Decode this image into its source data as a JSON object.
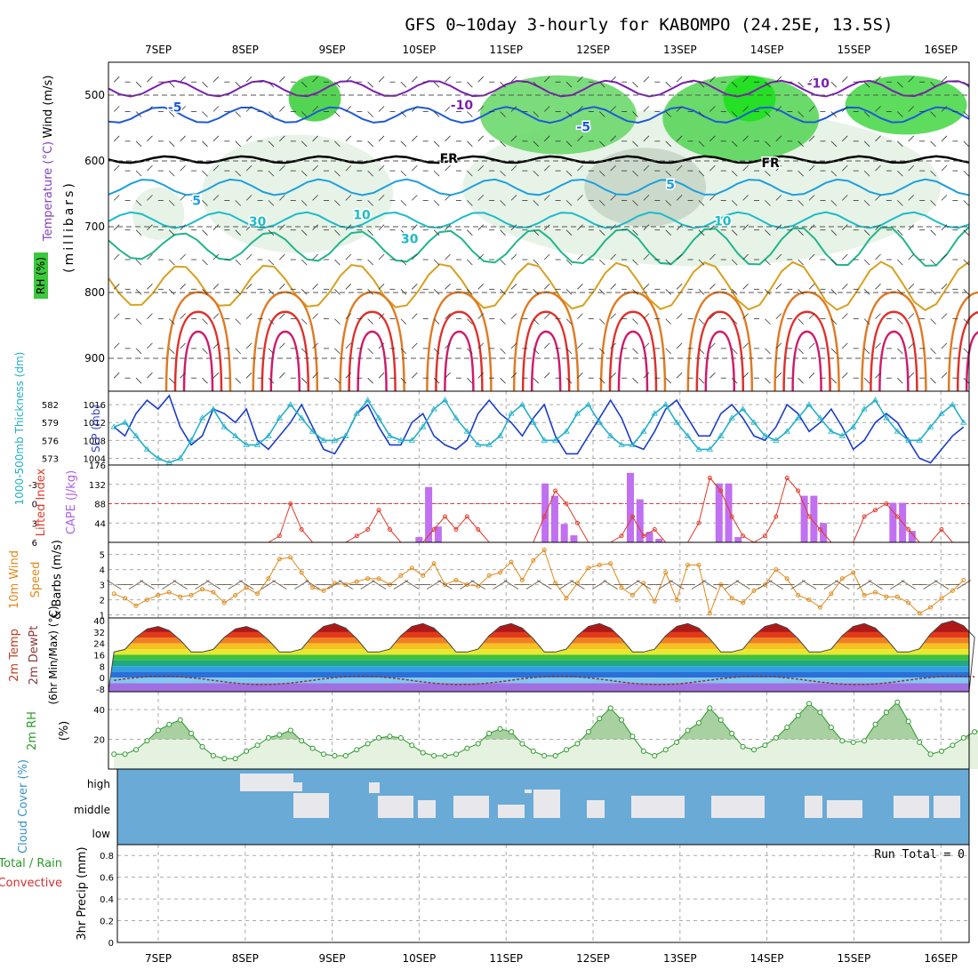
{
  "title": "GFS 0~10day 3-hourly for KABOMPO (24.25E, 13.5S)",
  "dates": [
    "7SEP",
    "8SEP",
    "9SEP",
    "10SEP",
    "11SEP",
    "12SEP",
    "13SEP",
    "14SEP",
    "15SEP",
    "16SEP"
  ],
  "run_total": "Run Total = 0",
  "colors": {
    "t_neg10": "#7a1fb0",
    "t_neg5": "#1f5ad8",
    "t_5": "#1e9fdc",
    "t_10": "#1cbcc8",
    "t_15": "#22b48c",
    "t_20": "#d7a01e",
    "t_25": "#e07a22",
    "t_30": "#e0302a",
    "t_35": "#d01a6a",
    "slp": "#1a3dc8",
    "thick": "#22b0c8",
    "li": "#e03a2a",
    "cape": "#c070f0",
    "wind": "#e08a1a",
    "rh": "#2a9a2a",
    "cloud_bg": "#6aaad6",
    "cloud": "#e8e8ec"
  },
  "chart_data": [
    {
      "type": "contour",
      "panel": "upper-air",
      "ylabel_main": "Wind (m/s)",
      "ylabel_temp": "Temperature (°C)",
      "ylabel_rh": "RH (%)",
      "ylabel_pressure": "(millibars)",
      "yticks": [
        "500",
        "600",
        "700",
        "800",
        "900"
      ],
      "ylim": [
        950,
        450
      ],
      "contour_labels": [
        {
          "text": "-5",
          "color": "t_neg5",
          "x": 0.6,
          "p": 518
        },
        {
          "text": "-10",
          "color": "t_neg10",
          "x": 3.9,
          "p": 515
        },
        {
          "text": "-5",
          "color": "t_neg5",
          "x": 5.3,
          "p": 548
        },
        {
          "text": "-10",
          "color": "t_neg10",
          "x": 8.0,
          "p": 482
        },
        {
          "text": "FR",
          "color": "black",
          "x": 3.75,
          "p": 596
        },
        {
          "text": "FR",
          "color": "black",
          "x": 7.45,
          "p": 603
        },
        {
          "text": "5",
          "color": "t_5",
          "x": 0.85,
          "p": 660
        },
        {
          "text": "5",
          "color": "t_5",
          "x": 6.3,
          "p": 636
        },
        {
          "text": "10",
          "color": "t_10",
          "x": 2.75,
          "p": 682
        },
        {
          "text": "10",
          "color": "t_10",
          "x": 6.9,
          "p": 691
        },
        {
          "text": "30",
          "color": "t_10",
          "x": 1.55,
          "p": 692
        },
        {
          "text": "30",
          "color": "t_10",
          "x": 3.3,
          "p": 718
        }
      ]
    },
    {
      "type": "line",
      "panel": "slp-thickness",
      "ylabel_left": "1000-500mb Thickness (dm)",
      "ylabel_right": "SLP (mb)",
      "left_ticks": [
        "582",
        "579",
        "576",
        "573"
      ],
      "right_ticks": [
        "1016",
        "1012",
        "1008",
        "1004"
      ],
      "ylim": [
        1002.5,
        1019
      ],
      "series": [
        {
          "key": "slp",
          "values": [
            1011,
            1009,
            1014,
            1017,
            1015,
            1018,
            1011,
            1007,
            1009,
            1015,
            1014,
            1012,
            1015,
            1008,
            1006,
            1009,
            1012,
            1016,
            1011,
            1006,
            1005,
            1009,
            1014,
            1016,
            1011,
            1007,
            1007,
            1012,
            1014,
            1009,
            1007,
            1006,
            1008,
            1014,
            1017,
            1014,
            1012,
            1009,
            1013,
            1016,
            1009,
            1005,
            1005,
            1009,
            1013,
            1017,
            1013,
            1007,
            1006,
            1010,
            1015,
            1017,
            1013,
            1009,
            1009,
            1014,
            1016,
            1013,
            1009,
            1008,
            1011,
            1016,
            1014,
            1010,
            1012,
            1015,
            1011,
            1006,
            1008,
            1012,
            1014,
            1012,
            1008,
            1004,
            1003,
            1006,
            1009,
            1011
          ]
        },
        {
          "key": "thick",
          "values": [
            1011,
            1012,
            1009,
            1006,
            1004,
            1003,
            1004,
            1008,
            1013,
            1015,
            1011,
            1009,
            1007,
            1007,
            1009,
            1013,
            1016,
            1013,
            1010,
            1008,
            1008,
            1009,
            1014,
            1017,
            1013,
            1009,
            1008,
            1008,
            1011,
            1015,
            1017,
            1013,
            1010,
            1007,
            1007,
            1009,
            1014,
            1016,
            1012,
            1008,
            1008,
            1010,
            1014,
            1016,
            1012,
            1009,
            1007,
            1007,
            1010,
            1014,
            1016,
            1012,
            1009,
            1006,
            1006,
            1009,
            1013,
            1015,
            1012,
            1009,
            1008,
            1010,
            1013,
            1016,
            1013,
            1010,
            1009,
            1011,
            1015,
            1017,
            1013,
            1010,
            1008,
            1008,
            1011,
            1014,
            1016,
            1012
          ]
        }
      ]
    },
    {
      "type": "bar",
      "panel": "cape-lifted-index",
      "ylabel_left": "Lifted Index",
      "ylabel_right": "CAPE (J/kg)",
      "li_ticks": [
        "-3",
        "0",
        "3",
        "6"
      ],
      "cape_ticks": [
        "176",
        "132",
        "88",
        "44"
      ],
      "ylim": [
        0,
        176
      ],
      "cape_bars": [
        {
          "x": 3.93,
          "v": 12
        },
        {
          "x": 4.04,
          "v": 126
        },
        {
          "x": 4.15,
          "v": 36
        },
        {
          "x": 5.38,
          "v": 134
        },
        {
          "x": 5.49,
          "v": 106
        },
        {
          "x": 5.6,
          "v": 42
        },
        {
          "x": 5.71,
          "v": 16
        },
        {
          "x": 6.36,
          "v": 158
        },
        {
          "x": 6.47,
          "v": 98
        },
        {
          "x": 6.58,
          "v": 24
        },
        {
          "x": 6.69,
          "v": 8
        },
        {
          "x": 7.38,
          "v": 134
        },
        {
          "x": 7.49,
          "v": 134
        },
        {
          "x": 7.6,
          "v": 12
        },
        {
          "x": 8.36,
          "v": 106
        },
        {
          "x": 8.47,
          "v": 106
        },
        {
          "x": 8.58,
          "v": 44
        },
        {
          "x": 9.38,
          "v": 90
        },
        {
          "x": 9.49,
          "v": 90
        },
        {
          "x": 9.6,
          "v": 26
        }
      ],
      "li_values": [
        9,
        10,
        9,
        8,
        9,
        7,
        7,
        9,
        9,
        9,
        8,
        9,
        9,
        8,
        7,
        5,
        0,
        4,
        8,
        9,
        9,
        7,
        5,
        4,
        1,
        4,
        8,
        7,
        9,
        4,
        2,
        4,
        2,
        4,
        7,
        8,
        9,
        9,
        6,
        2,
        -2,
        0,
        3,
        7,
        9,
        7,
        5,
        2,
        5,
        4,
        9,
        8,
        7,
        3,
        -4,
        -2,
        2,
        5,
        6,
        5,
        2,
        -4,
        -2,
        2,
        4,
        6,
        8,
        6,
        2,
        1,
        0,
        2,
        4,
        7,
        6,
        4,
        7,
        9
      ]
    },
    {
      "type": "line",
      "panel": "wind-10m",
      "ylabel": "10m Wind Speed & Barbs (m/s)",
      "yticks": [
        "5",
        "4",
        "3",
        "2",
        "1"
      ],
      "ylim": [
        0.8,
        5.8
      ],
      "values": [
        2.4,
        2.1,
        1.6,
        2.0,
        2.3,
        2.5,
        2.2,
        2.3,
        2.7,
        2.5,
        1.8,
        2.3,
        2.8,
        2.4,
        3.4,
        4.7,
        4.8,
        3.8,
        2.8,
        2.6,
        3.1,
        3.0,
        3.2,
        3.4,
        3.4,
        3.0,
        3.6,
        4.1,
        3.6,
        4.4,
        3.0,
        3.3,
        3.0,
        2.9,
        3.6,
        3.8,
        4.5,
        3.3,
        4.6,
        5.3,
        3.1,
        2.1,
        3.1,
        4.1,
        4.3,
        4.4,
        2.8,
        2.3,
        3.1,
        1.9,
        3.8,
        2.0,
        4.3,
        4.3,
        1.1,
        3.0,
        2.1,
        1.8,
        2.6,
        3.0,
        4.0,
        3.4,
        2.3,
        2.0,
        1.5,
        2.4,
        3.4,
        3.8,
        2.3,
        2.5,
        2.2,
        2.2,
        1.8,
        1.1,
        1.5,
        2.1,
        2.6,
        3.3
      ]
    },
    {
      "type": "area",
      "panel": "temp-dewpoint",
      "ylabel": "2m Temp 2m DewPt (6hr Min/Max) (°C)",
      "yticks": [
        "40",
        "32",
        "24",
        "16",
        "8",
        "0",
        "-8"
      ],
      "ylim": [
        -10,
        42
      ],
      "temp_amplitude": [
        36,
        36,
        38,
        38,
        38,
        38,
        38,
        38,
        38,
        40
      ],
      "temp_min": 18
    },
    {
      "type": "area",
      "panel": "rh-2m",
      "ylabel": "2m RH (%)",
      "yticks": [
        "40",
        "20"
      ],
      "ylim": [
        0,
        52
      ],
      "values": [
        10,
        10,
        13,
        19,
        26,
        30,
        33,
        24,
        15,
        9,
        7,
        7,
        12,
        16,
        21,
        23,
        26,
        19,
        14,
        10,
        9,
        9,
        13,
        17,
        21,
        22,
        21,
        16,
        11,
        9,
        9,
        10,
        14,
        17,
        24,
        27,
        25,
        17,
        12,
        9,
        9,
        13,
        17,
        25,
        34,
        41,
        33,
        22,
        12,
        9,
        13,
        18,
        26,
        31,
        41,
        33,
        24,
        15,
        13,
        16,
        21,
        28,
        36,
        44,
        38,
        28,
        19,
        18,
        19,
        30,
        38,
        45,
        32,
        18,
        10,
        12,
        16,
        21,
        25,
        26
      ]
    },
    {
      "type": "heatmap",
      "panel": "cloud-cover",
      "ylabel": "Cloud Cover (%)",
      "yticks": [
        "high",
        "middle",
        "low"
      ]
    },
    {
      "type": "bar",
      "panel": "precip",
      "ylabel": "3hr Precip (mm)",
      "ylabel_total": "Total / Rain",
      "ylabel_convective": "Convective",
      "yticks": [
        "0.8",
        "0.6",
        "0.4",
        "0.2",
        "0"
      ],
      "ylim": [
        0,
        0.9
      ],
      "values": []
    }
  ]
}
